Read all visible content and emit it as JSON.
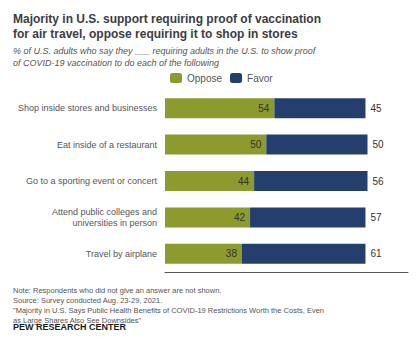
{
  "chart_data": {
    "type": "bar",
    "orientation": "horizontal",
    "stacked": true,
    "title": "Majority in U.S. support requiring proof of vaccination\nfor air travel, oppose requiring it to shop in stores",
    "subtitle": "% of U.S. adults who say they ___ requiring adults in the U.S. to show proof\nof COVID-19 vaccination to do each of the following",
    "annotations": [
      "Note: Respondents who did not give an answer are not shown.\nSource: Survey conducted Aug. 23-29, 2021.\n\"Majority in U.S. Says Public Health Benefits of COVID-19 Restrictions Worth the Costs, Even\nas Large Shares Also See Downsides\"",
      "PEW RESEARCH CENTER"
    ],
    "categories": [
      "Travel by airplane",
      "Attend public colleges and\nuniversities in person",
      "Go to a sporting event or concert",
      "Eat inside of a restaurant",
      "Shop inside stores and businesses"
    ],
    "series": [
      {
        "name": "Oppose",
        "color": "#8c9a2e",
        "values": [
          38,
          42,
          44,
          50,
          54
        ]
      },
      {
        "name": "Favor",
        "color": "#243f6e",
        "values": [
          61,
          57,
          56,
          50,
          45
        ]
      }
    ],
    "xlim": [
      0,
      120
    ],
    "data_labels": true,
    "tick_labels": "y",
    "grid": false,
    "legend": "top"
  }
}
